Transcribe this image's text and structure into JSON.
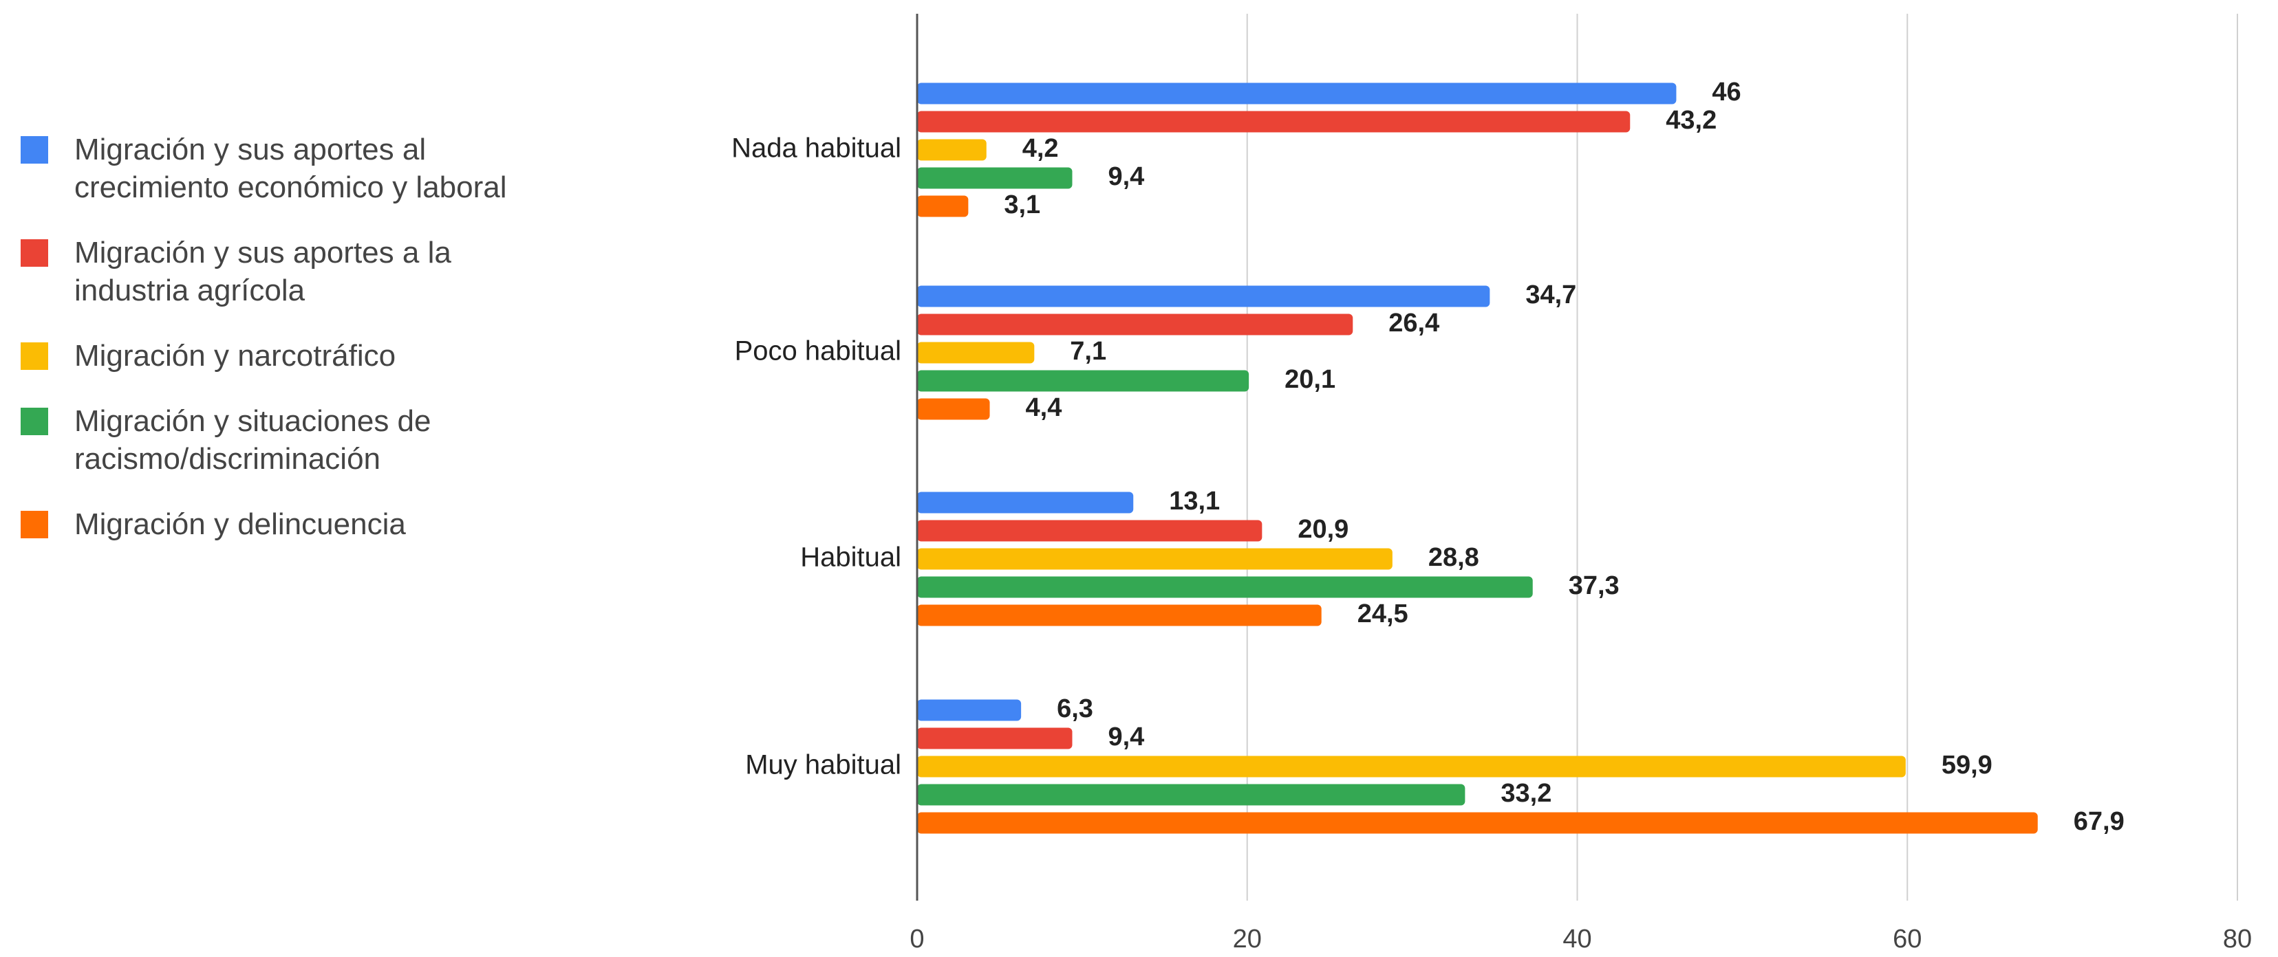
{
  "chart_data": {
    "type": "bar",
    "orientation": "horizontal",
    "categories": [
      "Nada habitual",
      "Poco habitual",
      "Habitual",
      "Muy habitual"
    ],
    "series": [
      {
        "name": "Migración y sus aportes al crecimiento económico y laboral",
        "color": "#4285f4",
        "values": [
          46,
          34.7,
          13.1,
          6.3
        ],
        "value_labels": [
          "46",
          "34,7",
          "13,1",
          "6,3"
        ]
      },
      {
        "name": "Migración y sus aportes a la industria agrícola",
        "color": "#ea4335",
        "values": [
          43.2,
          26.4,
          20.9,
          9.4
        ],
        "value_labels": [
          "43,2",
          "26,4",
          "20,9",
          "9,4"
        ]
      },
      {
        "name": "Migración y narcotráfico",
        "color": "#fbbc04",
        "values": [
          4.2,
          7.1,
          28.8,
          59.9
        ],
        "value_labels": [
          "4,2",
          "7,1",
          "28,8",
          "59,9"
        ]
      },
      {
        "name": "Migración y situaciones de racismo/discriminación",
        "color": "#34a853",
        "values": [
          9.4,
          20.1,
          37.3,
          33.2
        ],
        "value_labels": [
          "9,4",
          "20,1",
          "37,3",
          "33,2"
        ]
      },
      {
        "name": "Migración y delincuencia",
        "color": "#ff6d01",
        "values": [
          3.1,
          4.4,
          24.5,
          67.9
        ],
        "value_labels": [
          "3,1",
          "4,4",
          "24,5",
          "67,9"
        ]
      }
    ],
    "xlim": [
      0,
      80
    ],
    "xticks": [
      0,
      20,
      40,
      60,
      80
    ],
    "grid": true,
    "legend": "left"
  }
}
